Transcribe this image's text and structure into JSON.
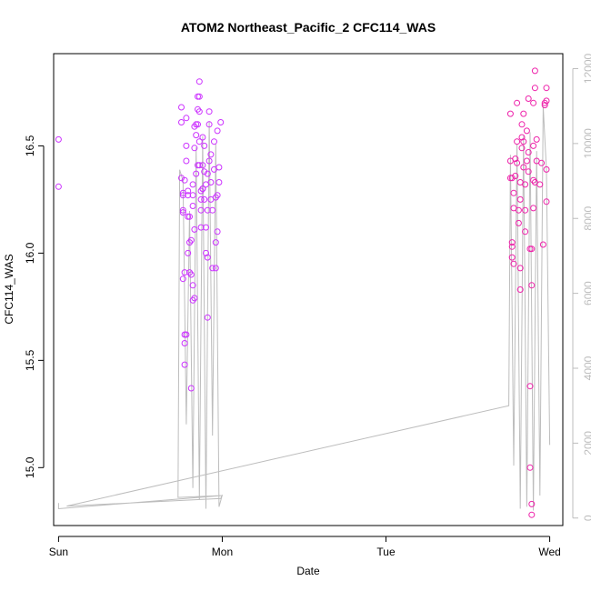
{
  "chart_data": {
    "type": "scatter",
    "title": "ATOM2 Northeast_Pacific_2 CFC114_WAS",
    "xlabel": "Date",
    "ylabel": "CFC114_WAS",
    "x_ticks": [
      "Sun",
      "Mon",
      "Tue",
      "Wed"
    ],
    "y_ticks": [
      "15.0",
      "15.5",
      "16.0",
      "16.5"
    ],
    "ylim": [
      14.73,
      16.93
    ],
    "y2_ticks": [
      "0",
      "2000",
      "4000",
      "6000",
      "8000",
      "10000",
      "12000"
    ],
    "y2lim": [
      -200,
      12400
    ],
    "grid": false,
    "legend": "none",
    "colors": {
      "points_day1": "#cc33ff",
      "points_day4": "#ee22aa",
      "altitude_line": "#bdbdbd",
      "axis": "#000000",
      "axis_right": "#bdbdbd"
    },
    "series": [
      {
        "kind": "points",
        "x_unit": "days since Sun 00:00",
        "points": [
          [
            0.0,
            16.53
          ],
          [
            0.0,
            16.31
          ],
          [
            0.75,
            16.68
          ],
          [
            0.75,
            16.61
          ],
          [
            0.75,
            16.35
          ],
          [
            0.76,
            16.2
          ],
          [
            0.76,
            16.27
          ],
          [
            0.77,
            16.34
          ],
          [
            0.76,
            16.28
          ],
          [
            0.76,
            16.19
          ],
          [
            0.76,
            15.88
          ],
          [
            0.77,
            15.48
          ],
          [
            0.77,
            15.58
          ],
          [
            0.77,
            15.62
          ],
          [
            0.77,
            15.91
          ],
          [
            0.78,
            15.62
          ],
          [
            0.78,
            16.5
          ],
          [
            0.78,
            16.63
          ],
          [
            0.78,
            16.43
          ],
          [
            0.79,
            16.29
          ],
          [
            0.79,
            16.17
          ],
          [
            0.79,
            16.0
          ],
          [
            0.8,
            16.17
          ],
          [
            0.8,
            15.91
          ],
          [
            0.8,
            16.05
          ],
          [
            0.79,
            16.27
          ],
          [
            0.81,
            15.37
          ],
          [
            0.81,
            16.06
          ],
          [
            0.81,
            15.9
          ],
          [
            0.82,
            15.78
          ],
          [
            0.82,
            15.85
          ],
          [
            0.82,
            16.22
          ],
          [
            0.82,
            16.27
          ],
          [
            0.82,
            16.32
          ],
          [
            0.83,
            16.11
          ],
          [
            0.83,
            15.79
          ],
          [
            0.83,
            16.59
          ],
          [
            0.83,
            16.49
          ],
          [
            0.84,
            16.55
          ],
          [
            0.84,
            16.6
          ],
          [
            0.84,
            16.37
          ],
          [
            0.85,
            16.41
          ],
          [
            0.85,
            16.6
          ],
          [
            0.85,
            16.67
          ],
          [
            0.85,
            16.73
          ],
          [
            0.86,
            16.73
          ],
          [
            0.86,
            16.8
          ],
          [
            0.86,
            16.66
          ],
          [
            0.86,
            16.52
          ],
          [
            0.86,
            16.41
          ],
          [
            0.87,
            16.29
          ],
          [
            0.87,
            16.25
          ],
          [
            0.87,
            16.12
          ],
          [
            0.87,
            16.2
          ],
          [
            0.88,
            16.3
          ],
          [
            0.88,
            16.41
          ],
          [
            0.88,
            16.54
          ],
          [
            0.88,
            16.3
          ],
          [
            0.89,
            16.25
          ],
          [
            0.89,
            16.5
          ],
          [
            0.89,
            16.38
          ],
          [
            0.9,
            16.32
          ],
          [
            0.9,
            16.12
          ],
          [
            0.9,
            16.0
          ],
          [
            0.91,
            15.98
          ],
          [
            0.91,
            15.7
          ],
          [
            0.91,
            16.2
          ],
          [
            0.91,
            16.37
          ],
          [
            0.92,
            16.43
          ],
          [
            0.92,
            16.6
          ],
          [
            0.92,
            16.66
          ],
          [
            0.93,
            16.46
          ],
          [
            0.93,
            16.33
          ],
          [
            0.93,
            16.25
          ],
          [
            0.94,
            16.2
          ],
          [
            0.94,
            15.93
          ],
          [
            0.95,
            16.52
          ],
          [
            0.95,
            16.39
          ],
          [
            0.96,
            16.26
          ],
          [
            0.96,
            16.05
          ],
          [
            0.96,
            15.93
          ],
          [
            0.97,
            16.1
          ],
          [
            0.97,
            16.27
          ],
          [
            0.97,
            16.57
          ],
          [
            0.98,
            16.4
          ],
          [
            0.98,
            16.33
          ],
          [
            0.99,
            16.61
          ],
          [
            2.76,
            16.35
          ],
          [
            2.76,
            16.43
          ],
          [
            2.76,
            16.65
          ],
          [
            2.77,
            16.35
          ],
          [
            2.77,
            16.03
          ],
          [
            2.77,
            16.05
          ],
          [
            2.77,
            15.98
          ],
          [
            2.78,
            15.95
          ],
          [
            2.78,
            16.21
          ],
          [
            2.78,
            16.28
          ],
          [
            2.79,
            16.36
          ],
          [
            2.79,
            16.44
          ],
          [
            2.8,
            16.7
          ],
          [
            2.8,
            16.52
          ],
          [
            2.8,
            16.42
          ],
          [
            2.81,
            16.2
          ],
          [
            2.81,
            16.14
          ],
          [
            2.82,
            16.25
          ],
          [
            2.82,
            16.33
          ],
          [
            2.82,
            15.93
          ],
          [
            2.82,
            15.83
          ],
          [
            2.83,
            16.49
          ],
          [
            2.83,
            16.54
          ],
          [
            2.83,
            16.6
          ],
          [
            2.84,
            16.65
          ],
          [
            2.84,
            16.52
          ],
          [
            2.84,
            16.4
          ],
          [
            2.85,
            16.32
          ],
          [
            2.85,
            16.2
          ],
          [
            2.85,
            16.1
          ],
          [
            2.86,
            16.43
          ],
          [
            2.86,
            16.57
          ],
          [
            2.87,
            16.72
          ],
          [
            2.87,
            16.47
          ],
          [
            2.87,
            16.38
          ],
          [
            2.88,
            16.02
          ],
          [
            2.88,
            15.38
          ],
          [
            2.88,
            15.0
          ],
          [
            2.89,
            14.83
          ],
          [
            2.89,
            14.78
          ],
          [
            2.89,
            15.85
          ],
          [
            2.89,
            16.02
          ],
          [
            2.9,
            16.21
          ],
          [
            2.9,
            16.34
          ],
          [
            2.9,
            16.5
          ],
          [
            2.9,
            16.7
          ],
          [
            2.91,
            16.77
          ],
          [
            2.91,
            16.85
          ],
          [
            2.91,
            16.33
          ],
          [
            2.92,
            16.43
          ],
          [
            2.92,
            16.53
          ],
          [
            2.96,
            16.04
          ],
          [
            2.97,
            16.7
          ],
          [
            2.97,
            16.69
          ],
          [
            2.98,
            16.71
          ],
          [
            2.98,
            16.77
          ],
          [
            2.98,
            16.39
          ],
          [
            2.98,
            16.24
          ],
          [
            2.94,
            16.32
          ],
          [
            2.95,
            16.42
          ]
        ]
      },
      {
        "kind": "line",
        "axis": "right",
        "x_unit": "days since Sun 00:00",
        "points": [
          [
            0.0,
            400
          ],
          [
            0.0,
            250
          ],
          [
            1.0,
            600
          ],
          [
            0.73,
            550
          ],
          [
            0.74,
            9300
          ],
          [
            0.76,
            9000
          ],
          [
            0.78,
            2500
          ],
          [
            0.8,
            8200
          ],
          [
            0.82,
            800
          ],
          [
            0.84,
            9900
          ],
          [
            0.86,
            500
          ],
          [
            0.88,
            10200
          ],
          [
            0.9,
            250
          ],
          [
            0.92,
            10600
          ],
          [
            0.94,
            2200
          ],
          [
            0.96,
            10000
          ],
          [
            0.98,
            300
          ],
          [
            1.0,
            620
          ],
          [
            0.99,
            520
          ],
          [
            0.05,
            320
          ],
          [
            2.75,
            3000
          ],
          [
            2.76,
            9700
          ],
          [
            2.78,
            1400
          ],
          [
            2.8,
            10000
          ],
          [
            2.82,
            250
          ],
          [
            2.84,
            10200
          ],
          [
            2.86,
            300
          ],
          [
            2.88,
            10300
          ],
          [
            2.9,
            200
          ],
          [
            2.92,
            9800
          ],
          [
            2.94,
            600
          ],
          [
            2.96,
            11000
          ],
          [
            2.98,
            9300
          ],
          [
            3.0,
            1950
          ]
        ]
      }
    ]
  }
}
